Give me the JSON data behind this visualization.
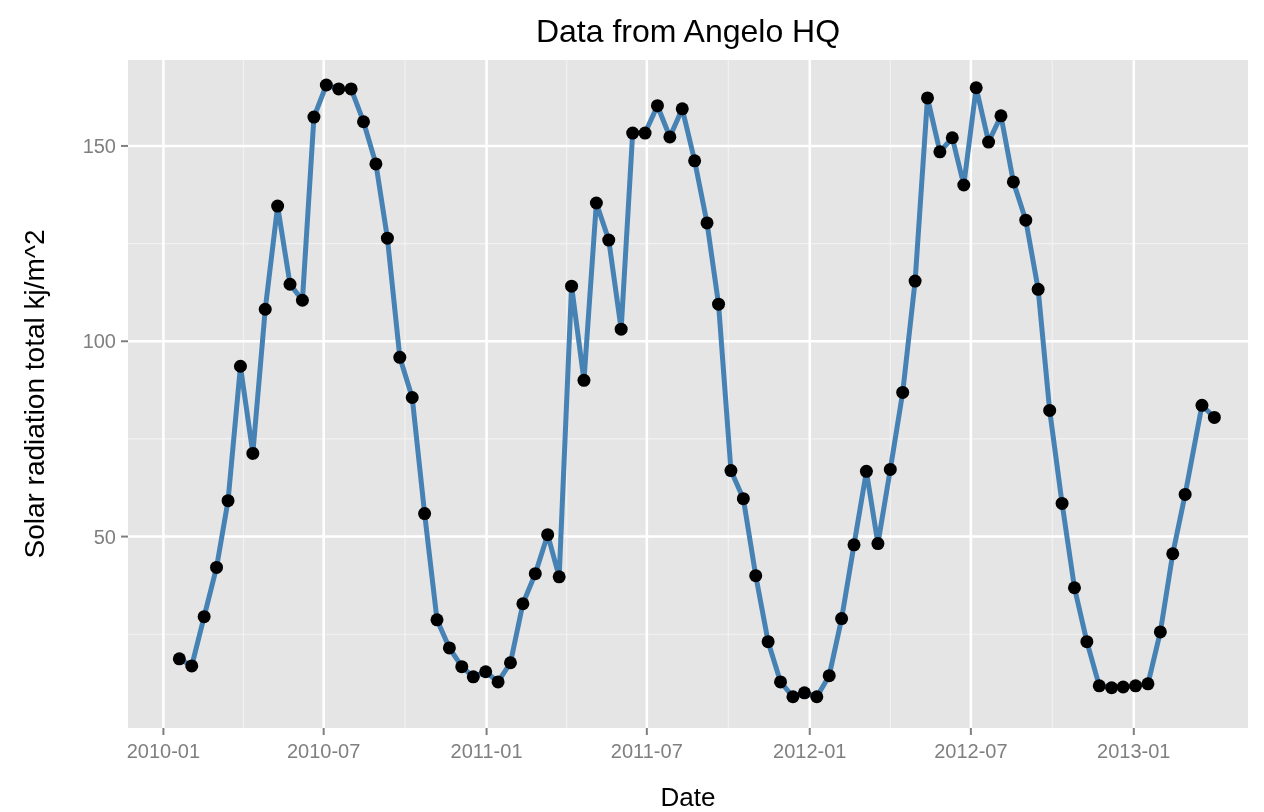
{
  "chart_data": {
    "type": "line",
    "title": "Data from Angelo HQ",
    "xlabel": "Date",
    "ylabel": "Solar radiation total kj/m^2",
    "x": [
      "2010-01-19",
      "2010-02-02",
      "2010-02-16",
      "2010-03-02",
      "2010-03-15",
      "2010-03-29",
      "2010-04-12",
      "2010-04-26",
      "2010-05-10",
      "2010-05-24",
      "2010-06-07",
      "2010-06-20",
      "2010-07-04",
      "2010-07-18",
      "2010-08-01",
      "2010-08-15",
      "2010-08-29",
      "2010-09-11",
      "2010-09-25",
      "2010-10-09",
      "2010-10-23",
      "2010-11-06",
      "2010-11-20",
      "2010-12-04",
      "2010-12-17",
      "2010-12-31",
      "2011-01-14",
      "2011-01-28",
      "2011-02-11",
      "2011-02-25",
      "2011-03-11",
      "2011-03-24",
      "2011-04-07",
      "2011-04-21",
      "2011-05-05",
      "2011-05-19",
      "2011-06-02",
      "2011-06-15",
      "2011-06-29",
      "2011-07-13",
      "2011-07-27",
      "2011-08-10",
      "2011-08-24",
      "2011-09-07",
      "2011-09-20",
      "2011-10-04",
      "2011-10-18",
      "2011-11-01",
      "2011-11-15",
      "2011-11-29",
      "2011-12-13",
      "2011-12-26",
      "2012-01-09",
      "2012-01-23",
      "2012-02-06",
      "2012-02-20",
      "2012-03-05",
      "2012-03-18",
      "2012-04-01",
      "2012-04-15",
      "2012-04-29",
      "2012-05-13",
      "2012-05-27",
      "2012-06-10",
      "2012-06-23",
      "2012-07-07",
      "2012-07-21",
      "2012-08-04",
      "2012-08-18",
      "2012-09-01",
      "2012-09-15",
      "2012-09-28",
      "2012-10-12",
      "2012-10-26",
      "2012-11-09",
      "2012-11-23",
      "2012-12-07",
      "2012-12-20",
      "2013-01-03",
      "2013-01-17",
      "2013-01-31",
      "2013-02-14",
      "2013-02-28",
      "2013-03-19",
      "2013-04-02"
    ],
    "series": [
      {
        "color": "#4682b4",
        "values": [
          18.7,
          16.9,
          29.5,
          42.1,
          59.2,
          93.6,
          71.3,
          108.2,
          134.6,
          114.6,
          110.5,
          157.4,
          165.6,
          164.6,
          164.6,
          156.2,
          145.4,
          126.4,
          95.9,
          85.6,
          55.9,
          28.7,
          21.5,
          16.7,
          14.1,
          15.4,
          12.8,
          17.7,
          32.8,
          40.5,
          50.5,
          39.7,
          114.1,
          90.0,
          135.4,
          125.9,
          103.1,
          153.3,
          153.3,
          160.3,
          152.3,
          159.5,
          146.2,
          130.3,
          109.5,
          66.9,
          59.7,
          40.0,
          23.1,
          12.8,
          9.0,
          10.0,
          9.0,
          14.4,
          29.0,
          47.9,
          66.7,
          48.2,
          67.2,
          86.9,
          115.4,
          162.3,
          148.5,
          152.1,
          140.0,
          164.9,
          151.0,
          157.7,
          140.8,
          131.0,
          113.3,
          82.3,
          58.5,
          36.9,
          23.1,
          11.8,
          11.3,
          11.5,
          11.8,
          12.3,
          25.6,
          45.6,
          60.8,
          83.6,
          80.5
        ]
      }
    ],
    "xlim": [
      "2009-11-22",
      "2013-05-10"
    ],
    "xticks": [
      "2010-01",
      "2010-07",
      "2011-01",
      "2011-07",
      "2012-01",
      "2012-07",
      "2013-01"
    ],
    "ylim": [
      1,
      172
    ],
    "yticks": [
      50,
      100,
      150
    ],
    "grid": true,
    "marker": "circle",
    "line_style": "solid"
  }
}
